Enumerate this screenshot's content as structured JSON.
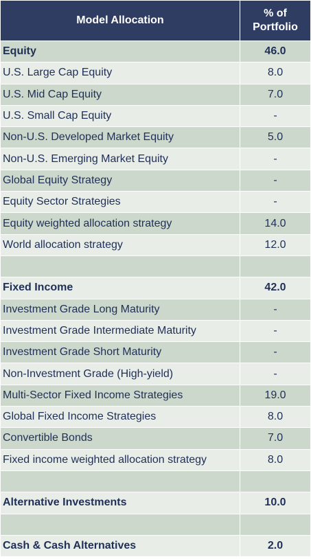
{
  "header": {
    "col1": "Model Allocation",
    "col2_line1": "% of",
    "col2_line2": "Portfolio"
  },
  "rows": [
    {
      "label": "Equity",
      "value": "46.0",
      "bold": true
    },
    {
      "label": "U.S. Large Cap Equity",
      "value": "8.0",
      "bold": false
    },
    {
      "label": "U.S. Mid Cap Equity",
      "value": "7.0",
      "bold": false
    },
    {
      "label": "U.S. Small Cap Equity",
      "value": "-",
      "bold": false
    },
    {
      "label": "Non-U.S. Developed Market Equity",
      "value": "5.0",
      "bold": false
    },
    {
      "label": "Non-U.S. Emerging Market Equity",
      "value": "-",
      "bold": false
    },
    {
      "label": "Global Equity Strategy",
      "value": "-",
      "bold": false
    },
    {
      "label": "Equity Sector Strategies",
      "value": "-",
      "bold": false
    },
    {
      "label": "Equity weighted allocation strategy",
      "value": "14.0",
      "bold": false
    },
    {
      "label": "World allocation strategy",
      "value": "12.0",
      "bold": false
    },
    {
      "label": "",
      "value": "",
      "bold": false
    },
    {
      "label": "Fixed Income",
      "value": "42.0",
      "bold": true
    },
    {
      "label": "Investment Grade Long Maturity",
      "value": "-",
      "bold": false
    },
    {
      "label": "Investment Grade Intermediate Maturity",
      "value": "-",
      "bold": false
    },
    {
      "label": "Investment Grade Short Maturity",
      "value": "-",
      "bold": false
    },
    {
      "label": "Non-Investment Grade (High-yield)",
      "value": "-",
      "bold": false
    },
    {
      "label": "Multi-Sector Fixed Income Strategies",
      "value": "19.0",
      "bold": false
    },
    {
      "label": "Global Fixed Income Strategies",
      "value": "8.0",
      "bold": false
    },
    {
      "label": "Convertible Bonds",
      "value": "7.0",
      "bold": false
    },
    {
      "label": "Fixed income weighted allocation strategy",
      "value": "8.0",
      "bold": false
    },
    {
      "label": "",
      "value": "",
      "bold": false
    },
    {
      "label": "Alternative Investments",
      "value": "10.0",
      "bold": true
    },
    {
      "label": "",
      "value": "",
      "bold": false
    },
    {
      "label": "Cash & Cash Alternatives",
      "value": "2.0",
      "bold": true
    }
  ],
  "colors": {
    "header_bg": "#2e3d61",
    "row_dark": "#ccd8cc",
    "row_light": "#e8ede8",
    "text": "#1f2f56"
  }
}
